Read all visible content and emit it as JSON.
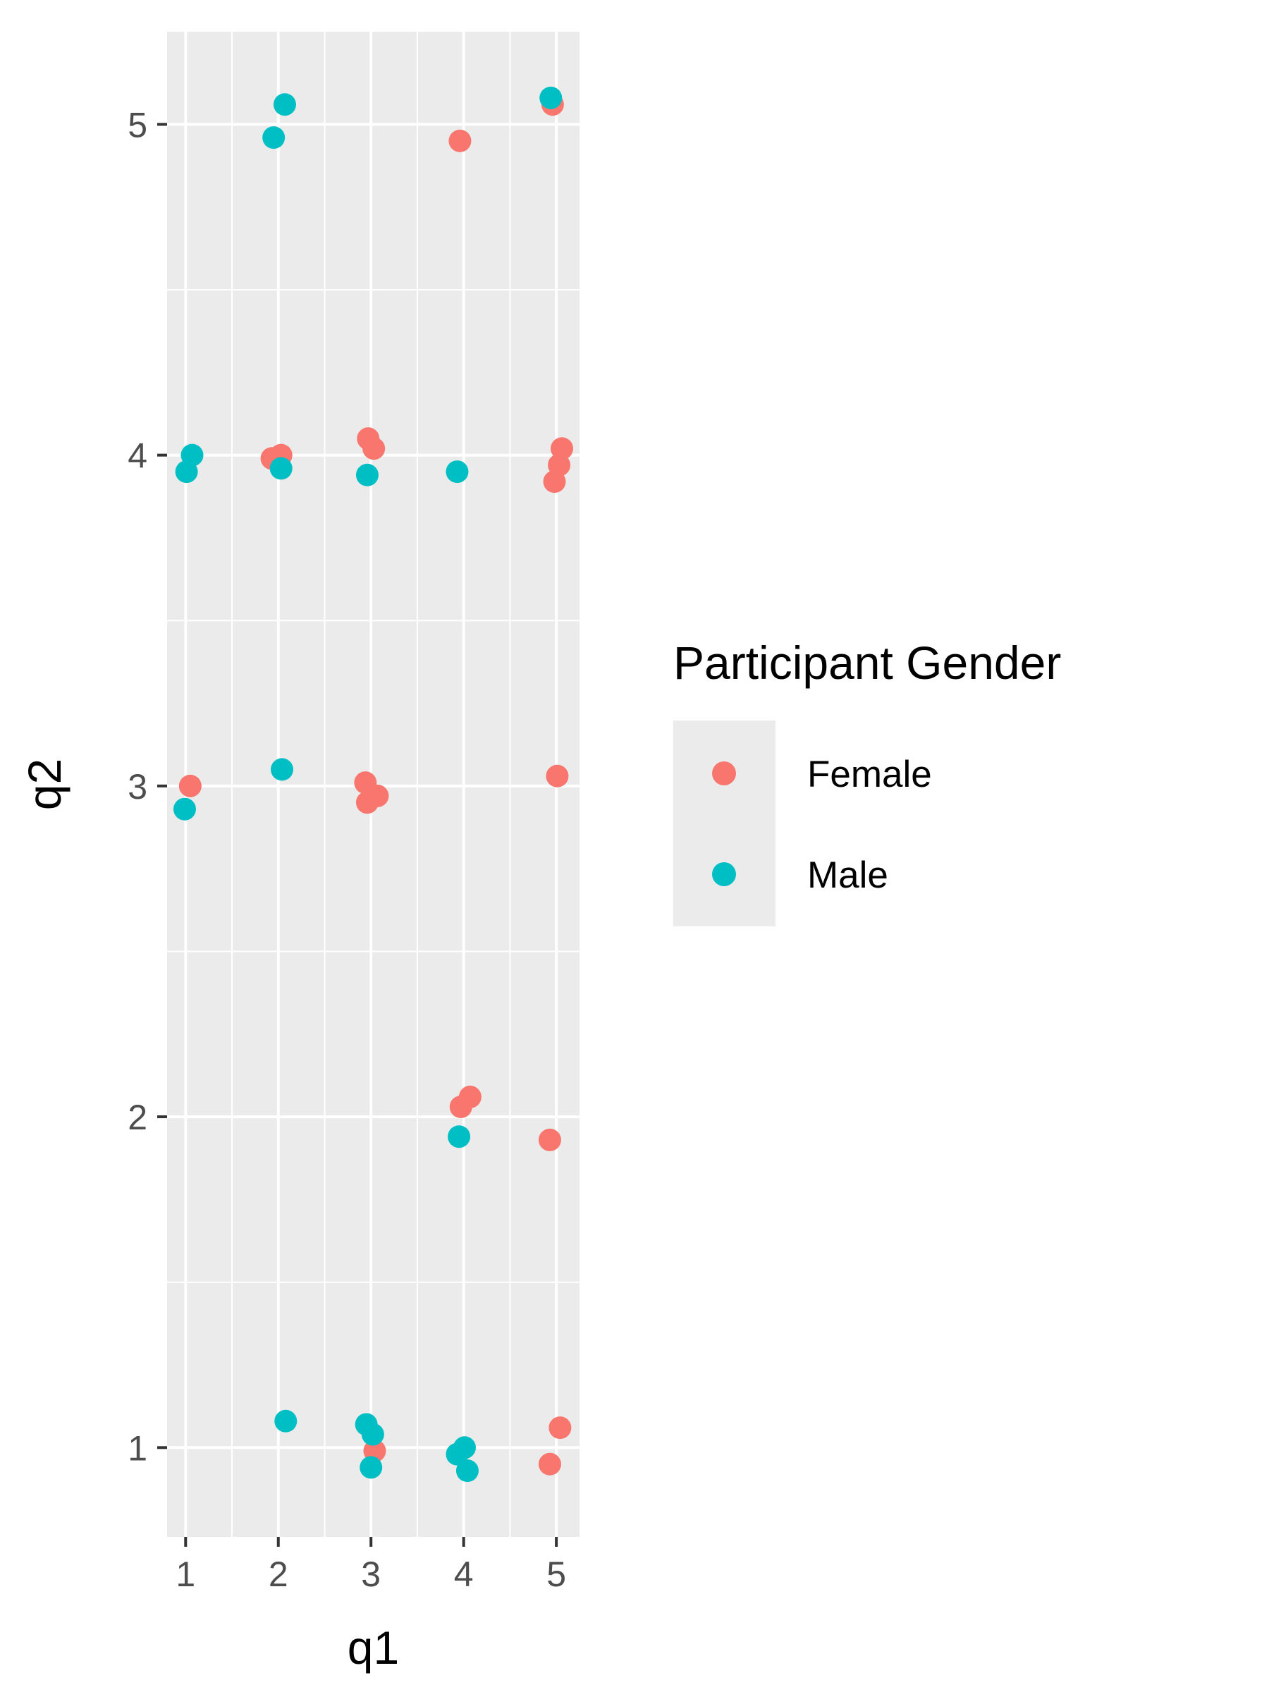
{
  "chart_data": {
    "type": "scatter",
    "xlabel": "q1",
    "ylabel": "q2",
    "xlim": [
      0.8,
      5.25
    ],
    "ylim": [
      0.73,
      5.28
    ],
    "x_ticks": [
      1,
      2,
      3,
      4,
      5
    ],
    "y_ticks": [
      1,
      2,
      3,
      4,
      5
    ],
    "grid": true,
    "panel_background": "#EBEBEB",
    "legend": {
      "title": "Participant Gender",
      "placement": "right"
    },
    "series": [
      {
        "name": "Female",
        "color": "#F8766D",
        "points": [
          {
            "x": 4.96,
            "y": 5.06
          },
          {
            "x": 3.96,
            "y": 4.95
          },
          {
            "x": 1.93,
            "y": 3.99
          },
          {
            "x": 2.03,
            "y": 4.0
          },
          {
            "x": 2.97,
            "y": 4.05
          },
          {
            "x": 3.03,
            "y": 4.02
          },
          {
            "x": 5.06,
            "y": 4.02
          },
          {
            "x": 5.03,
            "y": 3.97
          },
          {
            "x": 4.98,
            "y": 3.92
          },
          {
            "x": 1.05,
            "y": 3.0
          },
          {
            "x": 2.94,
            "y": 3.01
          },
          {
            "x": 3.07,
            "y": 2.97
          },
          {
            "x": 2.96,
            "y": 2.95
          },
          {
            "x": 5.01,
            "y": 3.03
          },
          {
            "x": 3.97,
            "y": 2.03
          },
          {
            "x": 4.07,
            "y": 2.06
          },
          {
            "x": 4.93,
            "y": 1.93
          },
          {
            "x": 3.04,
            "y": 0.99
          },
          {
            "x": 5.04,
            "y": 1.06
          },
          {
            "x": 4.93,
            "y": 0.95
          }
        ]
      },
      {
        "name": "Male",
        "color": "#00BFC4",
        "points": [
          {
            "x": 2.07,
            "y": 5.06
          },
          {
            "x": 1.95,
            "y": 4.96
          },
          {
            "x": 4.94,
            "y": 5.08
          },
          {
            "x": 1.07,
            "y": 4.0
          },
          {
            "x": 1.01,
            "y": 3.95
          },
          {
            "x": 2.03,
            "y": 3.96
          },
          {
            "x": 2.96,
            "y": 3.94
          },
          {
            "x": 3.93,
            "y": 3.95
          },
          {
            "x": 2.04,
            "y": 3.05
          },
          {
            "x": 0.99,
            "y": 2.93
          },
          {
            "x": 3.95,
            "y": 1.94
          },
          {
            "x": 2.08,
            "y": 1.08
          },
          {
            "x": 2.95,
            "y": 1.07
          },
          {
            "x": 3.02,
            "y": 1.04
          },
          {
            "x": 3.0,
            "y": 0.94
          },
          {
            "x": 3.93,
            "y": 0.98
          },
          {
            "x": 4.01,
            "y": 1.0
          },
          {
            "x": 4.04,
            "y": 0.93
          }
        ]
      }
    ]
  }
}
